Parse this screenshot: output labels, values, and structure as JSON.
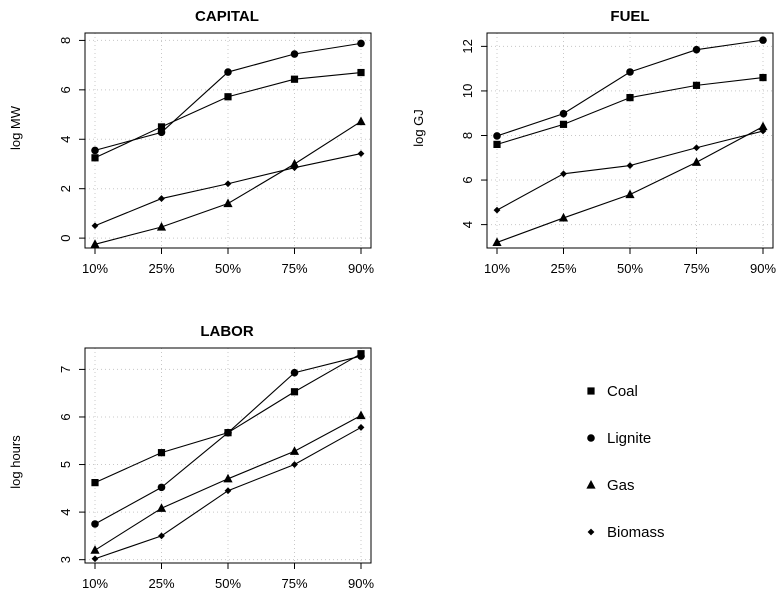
{
  "chart_data": [
    {
      "type": "line",
      "title": "CAPITAL",
      "xlabel": "",
      "ylabel": "log MW",
      "categories": [
        "10%",
        "25%",
        "50%",
        "75%",
        "90%"
      ],
      "ylim": [
        -0.4,
        8.3
      ],
      "yticks": [
        0,
        2,
        4,
        6,
        8
      ],
      "grid": true,
      "series": [
        {
          "name": "Coal",
          "values": [
            3.25,
            4.5,
            5.72,
            6.43,
            6.7
          ]
        },
        {
          "name": "Lignite",
          "values": [
            3.55,
            4.28,
            6.72,
            7.45,
            7.88
          ]
        },
        {
          "name": "Gas",
          "values": [
            -0.25,
            0.45,
            1.4,
            3.0,
            4.72
          ]
        },
        {
          "name": "Biomass",
          "values": [
            0.5,
            1.6,
            2.2,
            2.85,
            3.42
          ]
        }
      ]
    },
    {
      "type": "line",
      "title": "FUEL",
      "xlabel": "",
      "ylabel": "log GJ",
      "categories": [
        "10%",
        "25%",
        "50%",
        "75%",
        "90%"
      ],
      "ylim": [
        2.95,
        12.6
      ],
      "yticks": [
        4,
        6,
        8,
        10,
        12
      ],
      "grid": true,
      "series": [
        {
          "name": "Coal",
          "values": [
            7.6,
            8.5,
            9.7,
            10.25,
            10.6
          ]
        },
        {
          "name": "Lignite",
          "values": [
            7.98,
            8.98,
            10.85,
            11.85,
            12.28
          ]
        },
        {
          "name": "Gas",
          "values": [
            3.2,
            4.3,
            5.35,
            6.8,
            8.4
          ]
        },
        {
          "name": "Biomass",
          "values": [
            4.65,
            6.28,
            6.65,
            7.45,
            8.2
          ]
        }
      ]
    },
    {
      "type": "line",
      "title": "LABOR",
      "xlabel": "",
      "ylabel": "log hours",
      "categories": [
        "10%",
        "25%",
        "50%",
        "75%",
        "90%"
      ],
      "ylim": [
        2.93,
        7.45
      ],
      "yticks": [
        3,
        4,
        5,
        6,
        7
      ],
      "grid": true,
      "series": [
        {
          "name": "Coal",
          "values": [
            4.62,
            5.25,
            5.67,
            6.53,
            7.33
          ]
        },
        {
          "name": "Lignite",
          "values": [
            3.75,
            4.52,
            5.67,
            6.93,
            7.28
          ]
        },
        {
          "name": "Gas",
          "values": [
            3.2,
            4.08,
            4.7,
            5.28,
            6.03
          ]
        },
        {
          "name": "Biomass",
          "values": [
            3.02,
            3.5,
            4.45,
            5.0,
            5.78
          ]
        }
      ]
    }
  ],
  "legend": {
    "placement": "bottom-right",
    "items": [
      {
        "label": "Coal",
        "marker": "square"
      },
      {
        "label": "Lignite",
        "marker": "circle"
      },
      {
        "label": "Gas",
        "marker": "triangle"
      },
      {
        "label": "Biomass",
        "marker": "diamond"
      }
    ]
  },
  "markers": {
    "Coal": "square",
    "Lignite": "circle",
    "Gas": "triangle",
    "Biomass": "diamond"
  },
  "colors": {
    "line": "#000000",
    "grid": "#c8c8c8",
    "background": "#ffffff"
  }
}
